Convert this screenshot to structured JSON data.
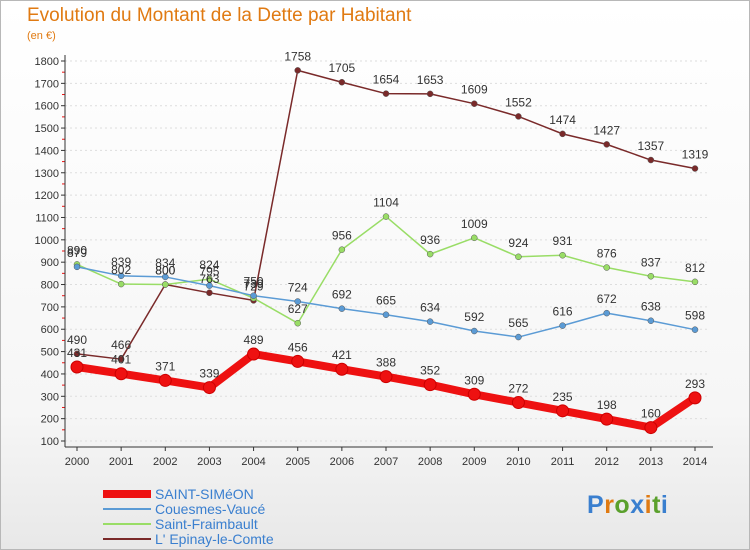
{
  "title": "Evolution du Montant de la Dette par Habitant",
  "unit_label": "(en €)",
  "logo_text": "Proxiti",
  "colors": {
    "title": "#e07a12",
    "legend_text": "#3a7fcf",
    "axis": "#333333",
    "grid": "#dddddd"
  },
  "chart_data": {
    "type": "line",
    "title": "Evolution du Montant de la Dette par Habitant",
    "ylabel": "(en €)",
    "x": [
      2000,
      2001,
      2002,
      2003,
      2004,
      2005,
      2006,
      2007,
      2008,
      2009,
      2010,
      2011,
      2012,
      2013,
      2014
    ],
    "ylim": [
      100,
      1800
    ],
    "yticks": [
      100,
      200,
      300,
      400,
      500,
      600,
      700,
      800,
      900,
      1000,
      1100,
      1200,
      1300,
      1400,
      1500,
      1600,
      1700,
      1800
    ],
    "grid": true,
    "legend_position": "bottom-left",
    "series": [
      {
        "name": "SAINT-SIMéON",
        "color": "#ee1111",
        "values": [
          431,
          401,
          371,
          339,
          489,
          456,
          421,
          388,
          352,
          309,
          272,
          235,
          198,
          160,
          293
        ]
      },
      {
        "name": "Couesmes-Vaucé",
        "color": "#5b9bd5",
        "values": [
          879,
          839,
          834,
          795,
          750,
          724,
          692,
          665,
          634,
          592,
          565,
          616,
          672,
          638,
          598
        ]
      },
      {
        "name": "Saint-Fraimbault",
        "color": "#99dd66",
        "values": [
          890,
          802,
          800,
          824,
          739,
          627,
          956,
          1104,
          936,
          1009,
          924,
          931,
          876,
          837,
          812
        ]
      },
      {
        "name": "L' Epinay-le-Comte",
        "color": "#7a2a2a",
        "values": [
          490,
          466,
          800,
          763,
          729,
          1758,
          1705,
          1654,
          1653,
          1609,
          1552,
          1474,
          1427,
          1357,
          1319
        ]
      }
    ]
  }
}
